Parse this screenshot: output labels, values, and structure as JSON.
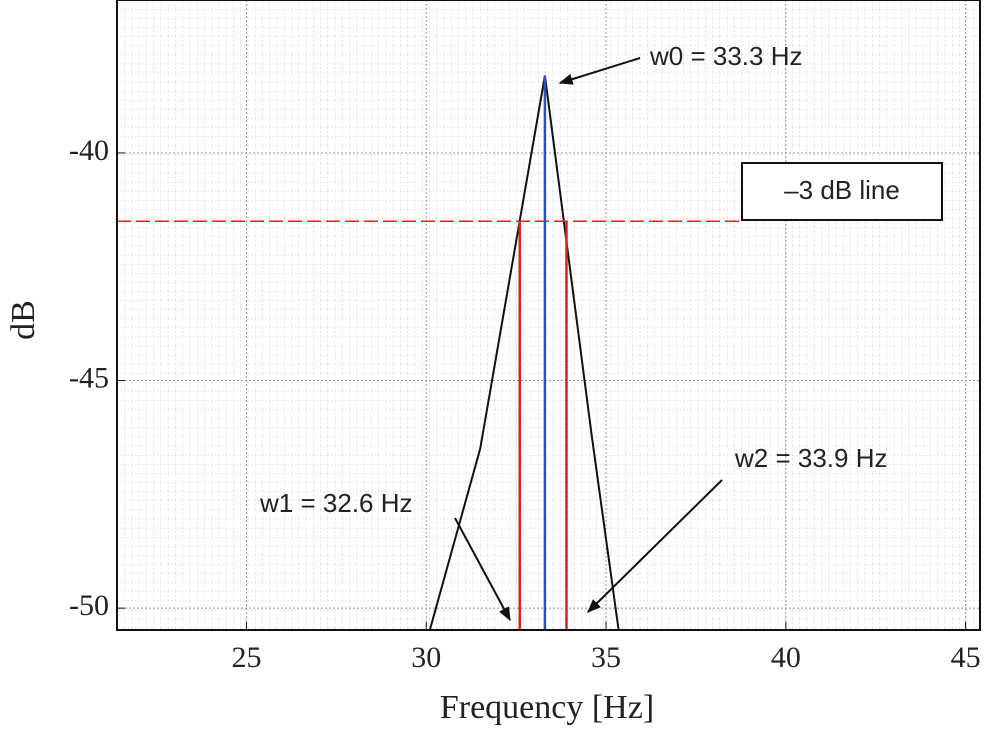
{
  "chart_data": {
    "type": "line",
    "xlabel": "Frequency [Hz]",
    "ylabel": "dB",
    "xlim": [
      21.4,
      45.4
    ],
    "ylim": [
      -50.48,
      -36.64
    ],
    "xticks": [
      25,
      30,
      35,
      40,
      45
    ],
    "yticks": [
      -50,
      -45,
      -40
    ],
    "grid": true,
    "series": [
      {
        "color": "#111111",
        "x": [
          30.1,
          31.5,
          33.3,
          34.6,
          35.35
        ],
        "values": [
          -50.48,
          -46.5,
          -38.3,
          -46.2,
          -50.48
        ]
      }
    ],
    "hline": {
      "value": -41.5,
      "xmax": 38.7,
      "color": "#e02020",
      "label": "–3 dB line"
    },
    "vlines": [
      {
        "x": 33.3,
        "top": -38.3,
        "color": "#3050c0",
        "label": "w0 = 33.3 Hz"
      },
      {
        "x": 32.6,
        "top": -41.5,
        "color": "#e02020",
        "label": "w1 = 32.6 Hz"
      },
      {
        "x": 33.9,
        "top": -41.5,
        "color": "#e02020",
        "label": "w2 = 33.9 Hz"
      }
    ]
  }
}
